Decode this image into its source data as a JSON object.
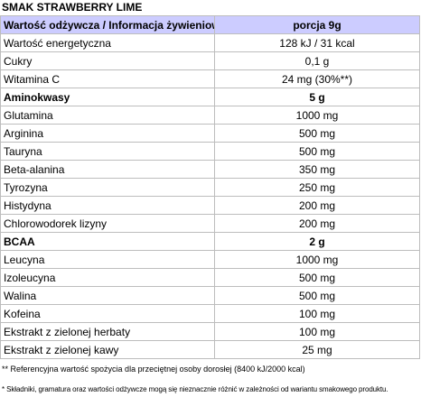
{
  "flavor": "SMAK STRAWBERRY LIME",
  "table": {
    "header": {
      "name": "Wartość odżywcza / Informacja żywieniowa",
      "value": "porcja 9g"
    },
    "rows": [
      {
        "name": "Wartość energetyczna",
        "value": "128 kJ / 31 kcal",
        "bold": false
      },
      {
        "name": "Cukry",
        "value": "0,1 g",
        "bold": false
      },
      {
        "name": "Witamina C",
        "value": "24 mg (30%**)",
        "bold": false
      },
      {
        "name": "Aminokwasy",
        "value": "5 g",
        "bold": true
      },
      {
        "name": "Glutamina",
        "value": "1000 mg",
        "bold": false
      },
      {
        "name": "Arginina",
        "value": "500 mg",
        "bold": false
      },
      {
        "name": "Tauryna",
        "value": "500 mg",
        "bold": false
      },
      {
        "name": "Beta-alanina",
        "value": "350 mg",
        "bold": false
      },
      {
        "name": "Tyrozyna",
        "value": "250 mg",
        "bold": false
      },
      {
        "name": "Histydyna",
        "value": "200 mg",
        "bold": false
      },
      {
        "name": "Chlorowodorek lizyny",
        "value": "200 mg",
        "bold": false
      },
      {
        "name": "BCAA",
        "value": "2 g",
        "bold": true
      },
      {
        "name": "Leucyna",
        "value": "1000 mg",
        "bold": false
      },
      {
        "name": "Izoleucyna",
        "value": "500 mg",
        "bold": false
      },
      {
        "name": "Walina",
        "value": "500 mg",
        "bold": false
      },
      {
        "name": "Kofeina",
        "value": "100 mg",
        "bold": false
      },
      {
        "name": "Ekstrakt z zielonej herbaty",
        "value": "100 mg",
        "bold": false
      },
      {
        "name": "Ekstrakt z zielonej kawy",
        "value": "25 mg",
        "bold": false
      }
    ]
  },
  "footnote": "** Referencyjna wartość spożycia dla przeciętnej osoby dorosłej (8400 kJ/2000 kcal)",
  "disclaimer": "* Składniki, gramatura oraz wartości odżywcze mogą się nieznacznie różnić w zależności od wariantu smakowego produktu."
}
